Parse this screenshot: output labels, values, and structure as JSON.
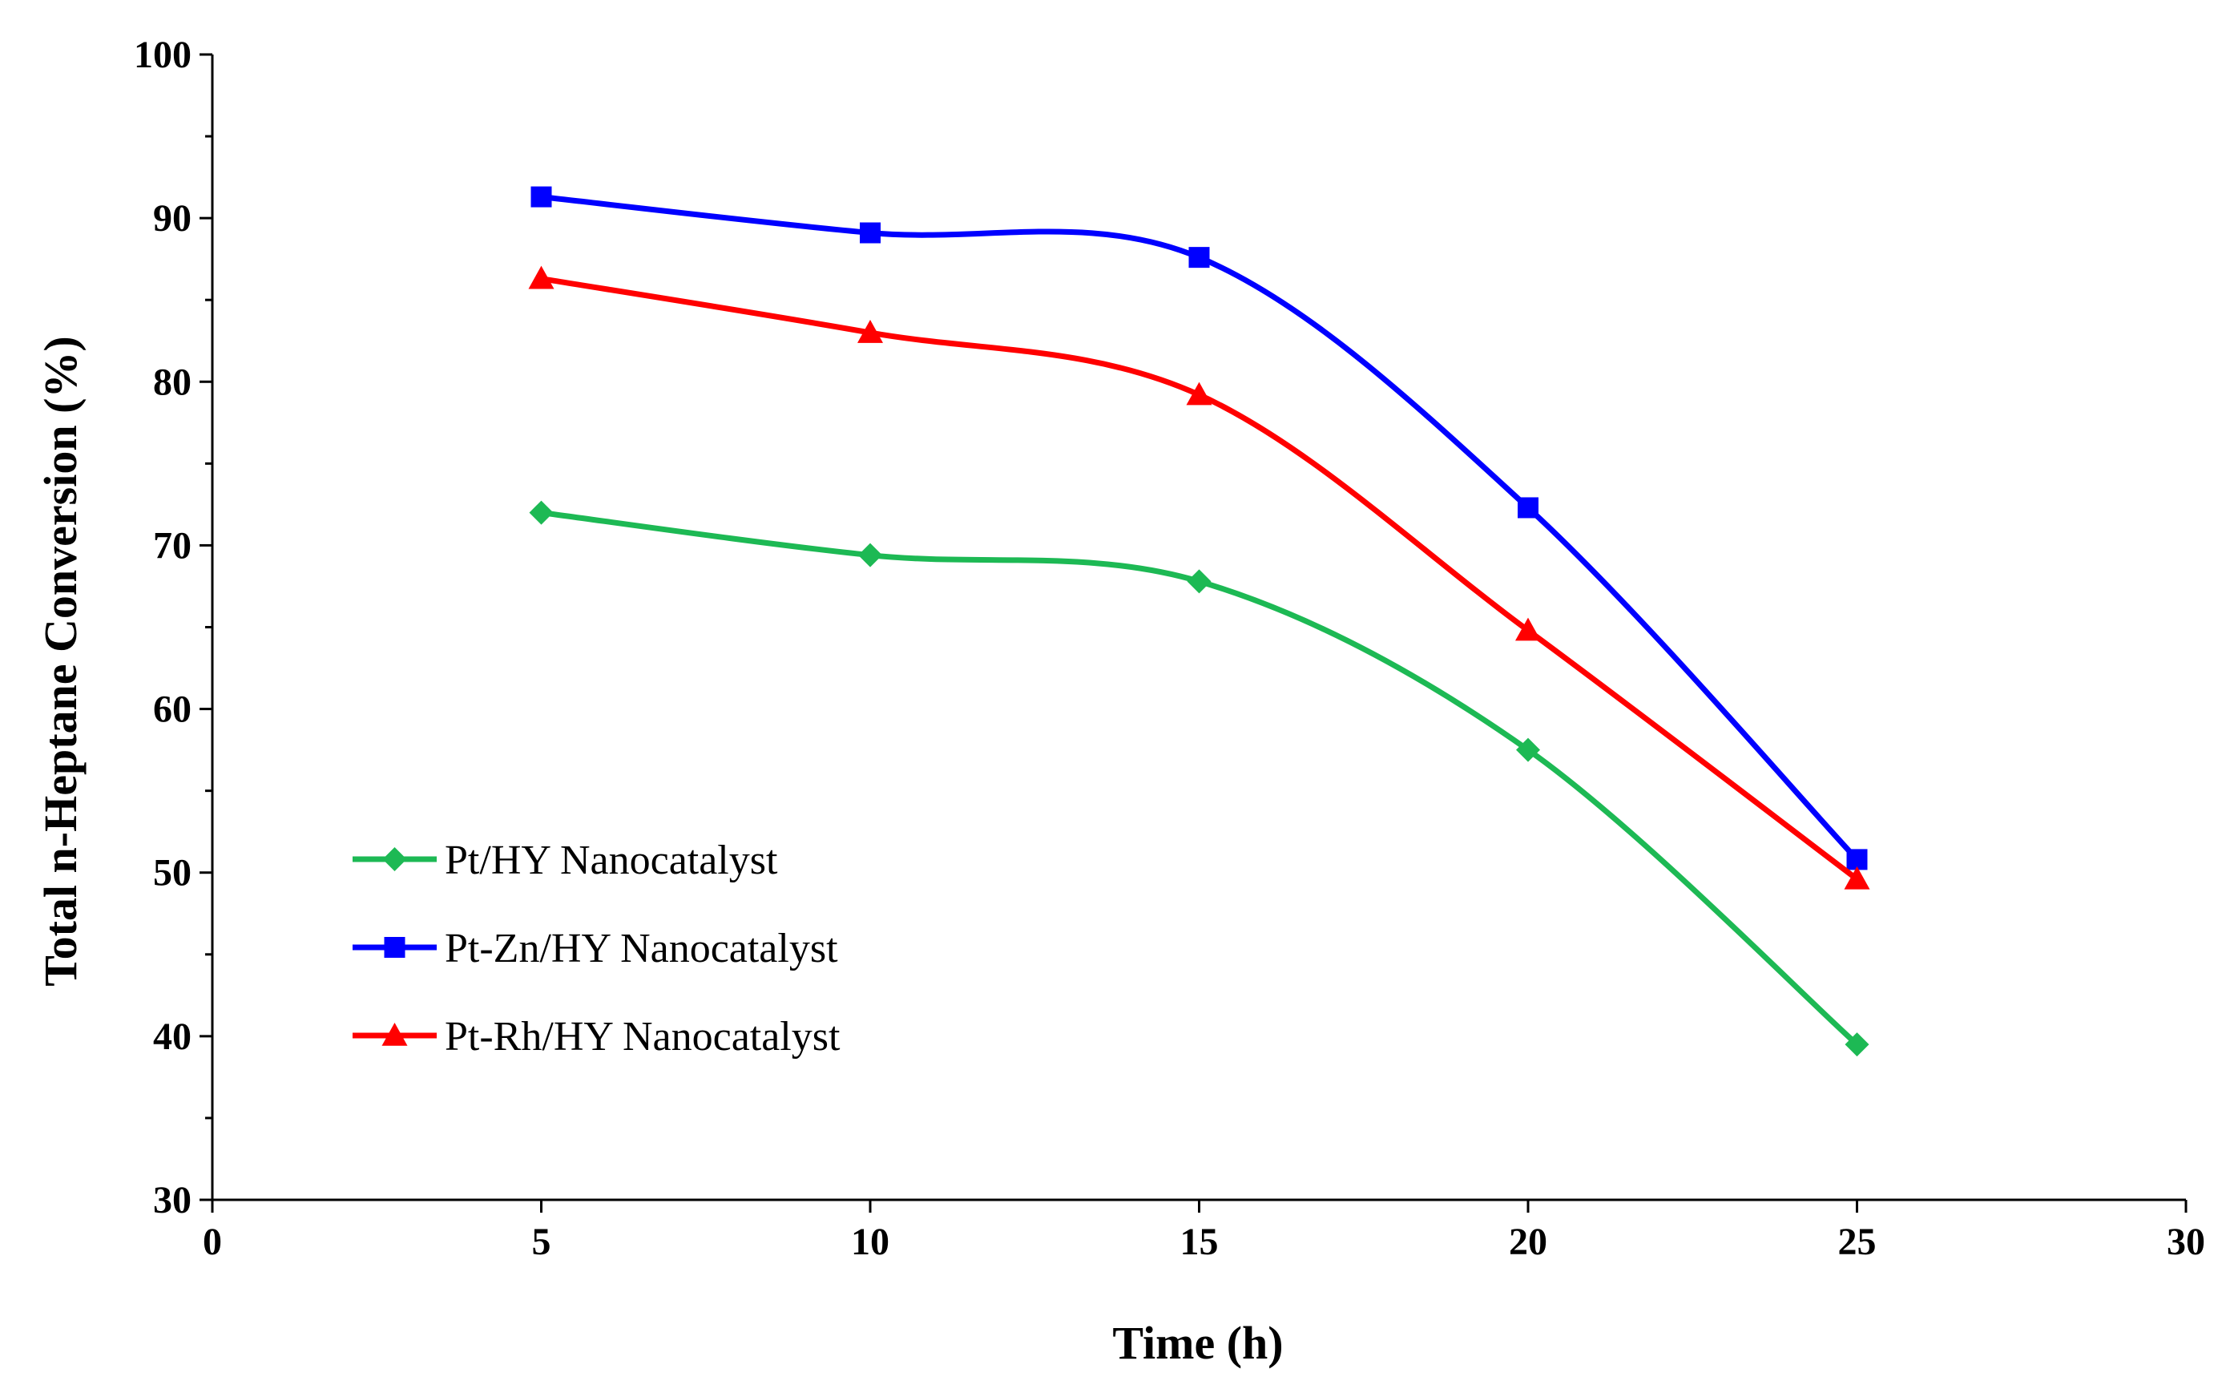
{
  "chart_data": {
    "type": "line",
    "title": "",
    "xlabel": "Time (h)",
    "ylabel": "Total n-Heptane Conversion  (%)",
    "xlim": [
      0,
      30
    ],
    "ylim": [
      30,
      100
    ],
    "xticks": [
      0,
      5,
      10,
      15,
      20,
      25,
      30
    ],
    "yticks": [
      30,
      40,
      50,
      60,
      70,
      80,
      90,
      100
    ],
    "x_tick_labels": [
      "0",
      "5",
      "10",
      "15",
      "20",
      "25",
      "30"
    ],
    "y_tick_labels": [
      "30",
      "40",
      "50",
      "60",
      "70",
      "80",
      "90",
      "100"
    ],
    "grid": false,
    "smooth": true,
    "legend_position": "lower-left",
    "x": [
      5,
      10,
      15,
      20,
      25
    ],
    "series": [
      {
        "name": "Pt/HY Nanocatalyst",
        "values": [
          72.0,
          69.4,
          67.8,
          57.5,
          39.5
        ],
        "color": "#1db954",
        "marker": "diamond"
      },
      {
        "name": "Pt-Zn/HY Nanocatalyst",
        "values": [
          91.3,
          89.1,
          87.6,
          72.3,
          50.8
        ],
        "color": "#0000ff",
        "marker": "square"
      },
      {
        "name": "Pt-Rh/HY Nanocatalyst",
        "values": [
          86.3,
          83.0,
          79.2,
          64.8,
          49.6
        ],
        "color": "#ff0000",
        "marker": "triangle"
      }
    ]
  }
}
